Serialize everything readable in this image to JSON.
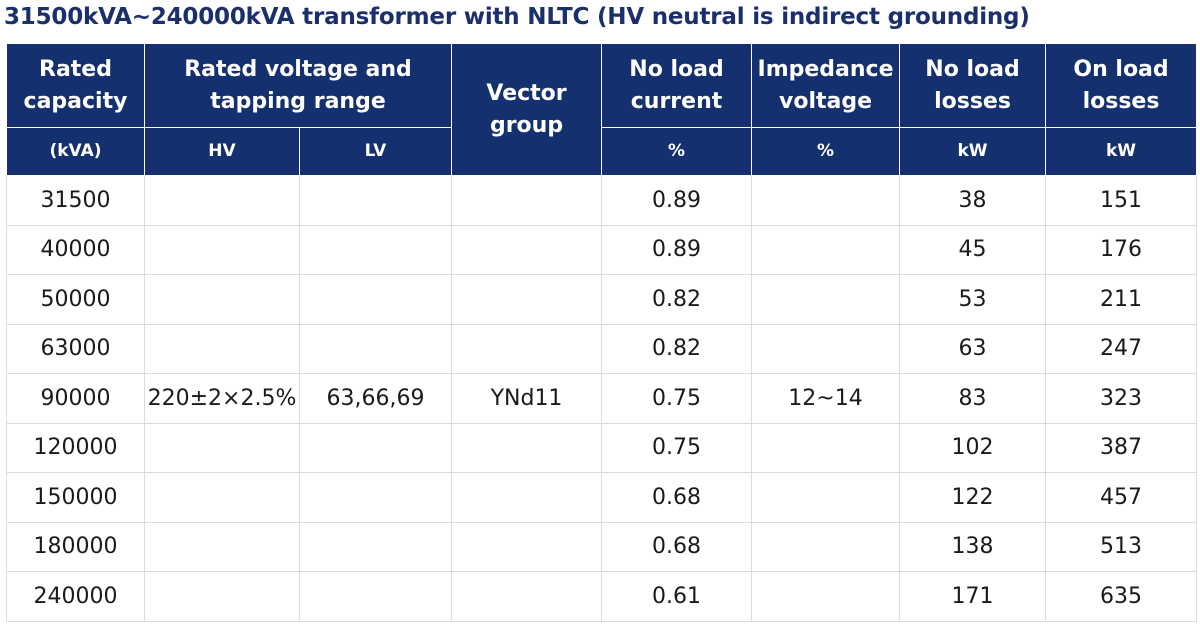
{
  "title": "31500kVA~240000kVA transformer with NLTC (HV neutral is indirect grounding)",
  "header": {
    "rated_capacity": [
      "Rated",
      "capacity"
    ],
    "rated_voltage": [
      "Rated voltage and",
      "tapping range"
    ],
    "vector_group": [
      "Vector",
      "group"
    ],
    "no_load_current": [
      "No load",
      "current"
    ],
    "impedance_voltage": [
      "Impedance",
      "voltage"
    ],
    "no_load_losses": [
      "No load",
      "losses"
    ],
    "on_load_losses": [
      "On load",
      "losses"
    ]
  },
  "units": {
    "capacity": "(kVA)",
    "hv": "HV",
    "lv": "LV",
    "current": "%",
    "impedance": "%",
    "no_load": "kW",
    "on_load": "kW"
  },
  "shared": {
    "hv": "220±2×2.5%",
    "lv": "63,66,69",
    "vector_group": "YNd11",
    "impedance": "12~14"
  },
  "rows": [
    {
      "capacity": "31500",
      "current": "0.89",
      "no_load": "38",
      "on_load": "151"
    },
    {
      "capacity": "40000",
      "current": "0.89",
      "no_load": "45",
      "on_load": "176"
    },
    {
      "capacity": "50000",
      "current": "0.82",
      "no_load": "53",
      "on_load": "211"
    },
    {
      "capacity": "63000",
      "current": "0.82",
      "no_load": "63",
      "on_load": "247"
    },
    {
      "capacity": "90000",
      "current": "0.75",
      "no_load": "83",
      "on_load": "323"
    },
    {
      "capacity": "120000",
      "current": "0.75",
      "no_load": "102",
      "on_load": "387"
    },
    {
      "capacity": "150000",
      "current": "0.68",
      "no_load": "122",
      "on_load": "457"
    },
    {
      "capacity": "180000",
      "current": "0.68",
      "no_load": "138",
      "on_load": "513"
    },
    {
      "capacity": "240000",
      "current": "0.61",
      "no_load": "171",
      "on_load": "635"
    }
  ]
}
